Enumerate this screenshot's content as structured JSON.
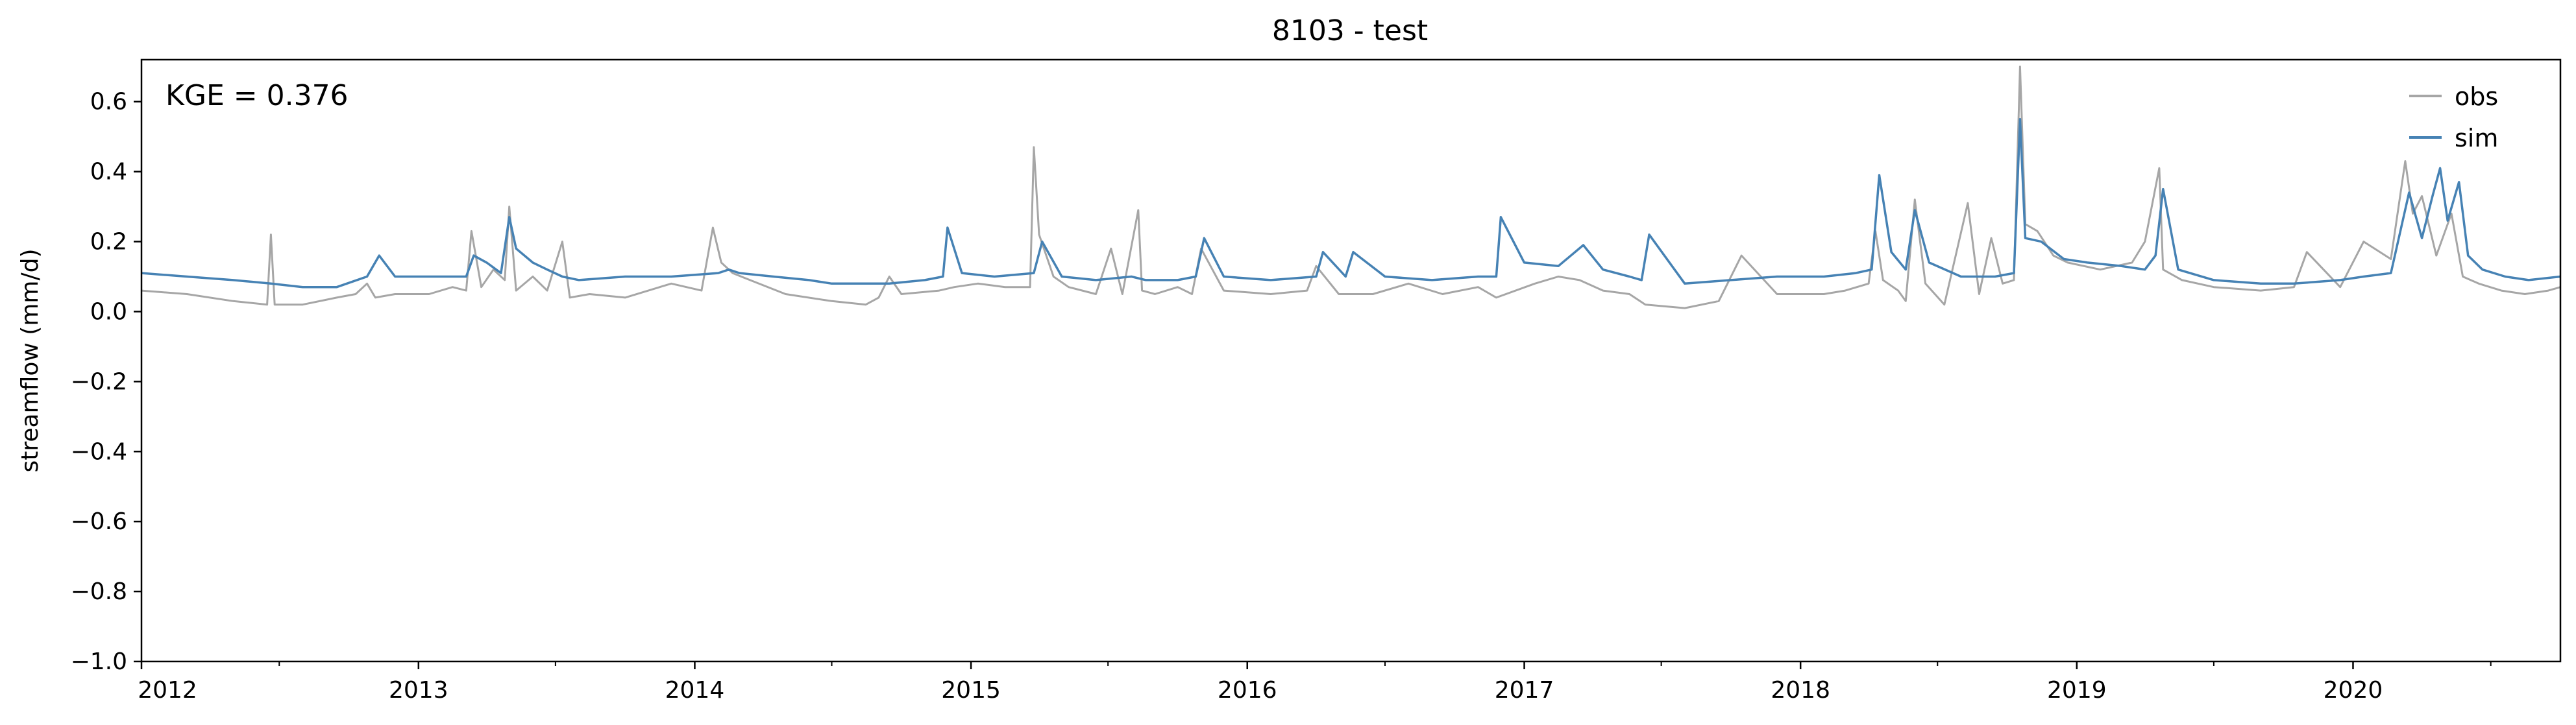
{
  "chart_data": {
    "type": "line",
    "title": "8103 - test",
    "xlabel": "",
    "ylabel": "streamflow (mm/d)",
    "xlim": [
      "2012-01-01",
      "2020-10-01"
    ],
    "ylim": [
      -1.0,
      0.72
    ],
    "y_ticks": [
      "0.6",
      "0.4",
      "0.2",
      "0.0",
      "−0.2",
      "−0.4",
      "−0.6",
      "−0.8",
      "−1.0"
    ],
    "y_tick_values": [
      0.6,
      0.4,
      0.2,
      0.0,
      -0.2,
      -0.4,
      -0.6,
      -0.8,
      -1.0
    ],
    "x_ticks": [
      "2012",
      "2013",
      "2014",
      "2015",
      "2016",
      "2017",
      "2018",
      "2019",
      "2020"
    ],
    "x_tick_dates": [
      "2012-01-01",
      "2013-01-01",
      "2014-01-01",
      "2015-01-01",
      "2016-01-01",
      "2017-01-01",
      "2018-01-01",
      "2019-01-01",
      "2020-01-01"
    ],
    "grid": false,
    "legend_position": "top-right",
    "annotation": "KGE = 0.376",
    "series": [
      {
        "name": "obs",
        "color": "#a6a6a6",
        "x": [
          "2012-01-01",
          "2012-03-01",
          "2012-05-01",
          "2012-06-15",
          "2012-06-20",
          "2012-06-25",
          "2012-08-01",
          "2012-09-15",
          "2012-10-10",
          "2012-10-25",
          "2012-11-05",
          "2012-12-01",
          "2013-01-15",
          "2013-02-15",
          "2013-03-05",
          "2013-03-12",
          "2013-03-25",
          "2013-04-10",
          "2013-04-25",
          "2013-05-01",
          "2013-05-10",
          "2013-06-01",
          "2013-06-20",
          "2013-07-10",
          "2013-07-20",
          "2013-08-15",
          "2013-10-01",
          "2013-12-01",
          "2014-01-10",
          "2014-01-25",
          "2014-02-05",
          "2014-02-20",
          "2014-03-15",
          "2014-05-01",
          "2014-07-01",
          "2014-08-15",
          "2014-09-01",
          "2014-09-15",
          "2014-10-01",
          "2014-11-20",
          "2014-12-10",
          "2015-01-10",
          "2015-02-15",
          "2015-03-20",
          "2015-03-25",
          "2015-04-01",
          "2015-04-20",
          "2015-05-10",
          "2015-06-15",
          "2015-07-05",
          "2015-07-20",
          "2015-08-10",
          "2015-08-15",
          "2015-09-01",
          "2015-10-01",
          "2015-10-20",
          "2015-11-01",
          "2015-12-01",
          "2016-02-01",
          "2016-03-20",
          "2016-04-01",
          "2016-05-01",
          "2016-06-15",
          "2016-08-01",
          "2016-09-15",
          "2016-11-01",
          "2016-11-25",
          "2017-01-15",
          "2017-02-15",
          "2017-03-15",
          "2017-04-15",
          "2017-05-20",
          "2017-06-10",
          "2017-08-01",
          "2017-09-15",
          "2017-10-15",
          "2017-12-01",
          "2018-02-01",
          "2018-03-01",
          "2018-04-01",
          "2018-04-10",
          "2018-04-20",
          "2018-05-10",
          "2018-05-20",
          "2018-06-01",
          "2018-06-15",
          "2018-07-10",
          "2018-08-10",
          "2018-08-25",
          "2018-09-10",
          "2018-09-25",
          "2018-10-10",
          "2018-10-18",
          "2018-10-25",
          "2018-11-10",
          "2018-12-01",
          "2018-12-20",
          "2019-02-01",
          "2019-03-15",
          "2019-04-01",
          "2019-04-20",
          "2019-04-25",
          "2019-05-20",
          "2019-07-01",
          "2019-09-01",
          "2019-10-15",
          "2019-11-01",
          "2019-12-15",
          "2020-01-15",
          "2020-02-20",
          "2020-03-10",
          "2020-03-20",
          "2020-04-01",
          "2020-04-20",
          "2020-05-10",
          "2020-05-25",
          "2020-06-15",
          "2020-07-15",
          "2020-08-15",
          "2020-09-15",
          "2020-10-01"
        ],
        "y": [
          0.06,
          0.05,
          0.03,
          0.02,
          0.22,
          0.02,
          0.02,
          0.04,
          0.05,
          0.08,
          0.04,
          0.05,
          0.05,
          0.07,
          0.06,
          0.23,
          0.07,
          0.12,
          0.09,
          0.3,
          0.06,
          0.1,
          0.06,
          0.2,
          0.04,
          0.05,
          0.04,
          0.08,
          0.06,
          0.24,
          0.14,
          0.11,
          0.09,
          0.05,
          0.03,
          0.02,
          0.04,
          0.1,
          0.05,
          0.06,
          0.07,
          0.08,
          0.07,
          0.07,
          0.47,
          0.22,
          0.1,
          0.07,
          0.05,
          0.18,
          0.05,
          0.29,
          0.06,
          0.05,
          0.07,
          0.05,
          0.18,
          0.06,
          0.05,
          0.06,
          0.13,
          0.05,
          0.05,
          0.08,
          0.05,
          0.07,
          0.04,
          0.08,
          0.1,
          0.09,
          0.06,
          0.05,
          0.02,
          0.01,
          0.03,
          0.16,
          0.05,
          0.05,
          0.06,
          0.08,
          0.23,
          0.09,
          0.06,
          0.03,
          0.32,
          0.08,
          0.02,
          0.31,
          0.05,
          0.21,
          0.08,
          0.09,
          0.7,
          0.25,
          0.23,
          0.16,
          0.14,
          0.12,
          0.14,
          0.2,
          0.41,
          0.12,
          0.09,
          0.07,
          0.06,
          0.07,
          0.17,
          0.07,
          0.2,
          0.15,
          0.43,
          0.28,
          0.33,
          0.16,
          0.28,
          0.1,
          0.08,
          0.06,
          0.05,
          0.06,
          0.07
        ]
      },
      {
        "name": "sim",
        "color": "#4682b4",
        "x": [
          "2012-01-01",
          "2012-03-01",
          "2012-05-01",
          "2012-06-20",
          "2012-08-01",
          "2012-09-15",
          "2012-10-25",
          "2012-11-10",
          "2012-12-01",
          "2013-01-15",
          "2013-03-05",
          "2013-03-15",
          "2013-04-01",
          "2013-04-20",
          "2013-05-01",
          "2013-05-10",
          "2013-06-01",
          "2013-06-20",
          "2013-07-10",
          "2013-08-01",
          "2013-10-01",
          "2013-12-01",
          "2014-02-01",
          "2014-02-15",
          "2014-03-01",
          "2014-04-15",
          "2014-06-01",
          "2014-07-01",
          "2014-08-15",
          "2014-09-15",
          "2014-11-01",
          "2014-11-25",
          "2014-12-01",
          "2014-12-20",
          "2015-02-01",
          "2015-03-25",
          "2015-04-05",
          "2015-05-01",
          "2015-06-15",
          "2015-08-01",
          "2015-08-20",
          "2015-10-01",
          "2015-10-25",
          "2015-11-05",
          "2015-12-01",
          "2016-02-01",
          "2016-04-01",
          "2016-04-10",
          "2016-05-10",
          "2016-05-20",
          "2016-07-01",
          "2016-09-01",
          "2016-11-01",
          "2016-11-25",
          "2016-12-01",
          "2017-01-01",
          "2017-02-15",
          "2017-03-20",
          "2017-04-15",
          "2017-05-20",
          "2017-06-05",
          "2017-06-15",
          "2017-08-01",
          "2017-10-01",
          "2017-12-01",
          "2018-02-01",
          "2018-03-15",
          "2018-04-05",
          "2018-04-15",
          "2018-05-01",
          "2018-05-20",
          "2018-06-01",
          "2018-06-20",
          "2018-08-01",
          "2018-09-15",
          "2018-10-10",
          "2018-10-18",
          "2018-10-25",
          "2018-11-15",
          "2018-12-15",
          "2019-01-15",
          "2019-03-01",
          "2019-04-01",
          "2019-04-15",
          "2019-04-25",
          "2019-05-15",
          "2019-07-01",
          "2019-09-01",
          "2019-10-15",
          "2019-12-15",
          "2020-01-15",
          "2020-02-20",
          "2020-03-15",
          "2020-04-01",
          "2020-04-15",
          "2020-04-25",
          "2020-05-05",
          "2020-05-20",
          "2020-06-01",
          "2020-06-20",
          "2020-07-20",
          "2020-08-20",
          "2020-10-01"
        ],
        "y": [
          0.11,
          0.1,
          0.09,
          0.08,
          0.07,
          0.07,
          0.1,
          0.16,
          0.1,
          0.1,
          0.1,
          0.16,
          0.14,
          0.11,
          0.27,
          0.18,
          0.14,
          0.12,
          0.1,
          0.09,
          0.1,
          0.1,
          0.11,
          0.12,
          0.11,
          0.1,
          0.09,
          0.08,
          0.08,
          0.08,
          0.09,
          0.1,
          0.24,
          0.11,
          0.1,
          0.11,
          0.2,
          0.1,
          0.09,
          0.1,
          0.09,
          0.09,
          0.1,
          0.21,
          0.1,
          0.09,
          0.1,
          0.17,
          0.1,
          0.17,
          0.1,
          0.09,
          0.1,
          0.1,
          0.27,
          0.14,
          0.13,
          0.19,
          0.12,
          0.1,
          0.09,
          0.22,
          0.08,
          0.09,
          0.1,
          0.1,
          0.11,
          0.12,
          0.39,
          0.17,
          0.12,
          0.29,
          0.14,
          0.1,
          0.1,
          0.11,
          0.55,
          0.21,
          0.2,
          0.15,
          0.14,
          0.13,
          0.12,
          0.16,
          0.35,
          0.12,
          0.09,
          0.08,
          0.08,
          0.09,
          0.1,
          0.11,
          0.34,
          0.21,
          0.33,
          0.41,
          0.26,
          0.37,
          0.16,
          0.12,
          0.1,
          0.09,
          0.1
        ]
      }
    ]
  }
}
